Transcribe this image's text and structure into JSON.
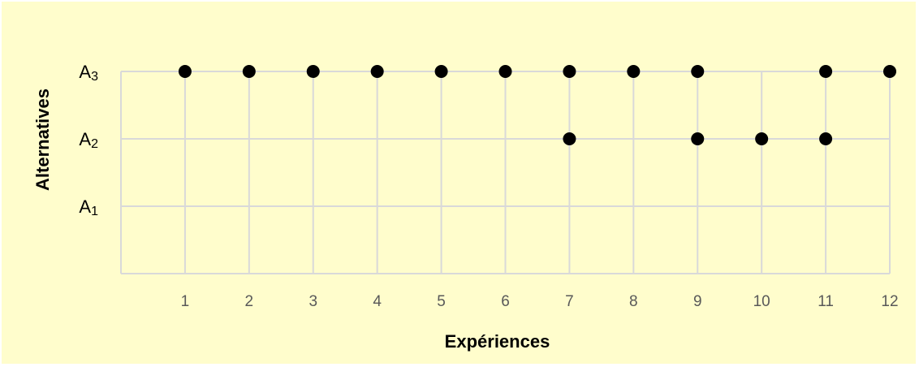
{
  "chart_data": {
    "type": "scatter",
    "xlabel": "Expériences",
    "ylabel": "Alternatives",
    "x_ticks": [
      "1",
      "2",
      "3",
      "4",
      "5",
      "6",
      "7",
      "8",
      "9",
      "10",
      "11",
      "12"
    ],
    "y_ticks": [
      {
        "value": 1,
        "base": "A",
        "sub": "1"
      },
      {
        "value": 2,
        "base": "A",
        "sub": "2"
      },
      {
        "value": 3,
        "base": "A",
        "sub": "3"
      }
    ],
    "xlim": [
      0,
      12
    ],
    "ylim": [
      0,
      3
    ],
    "grid": true,
    "background": "#fffdcc",
    "marker_color": "#000000",
    "grid_color": "#d9d9d9",
    "points": [
      {
        "x": 1,
        "y": 3
      },
      {
        "x": 2,
        "y": 3
      },
      {
        "x": 3,
        "y": 3
      },
      {
        "x": 4,
        "y": 3
      },
      {
        "x": 5,
        "y": 3
      },
      {
        "x": 6,
        "y": 3
      },
      {
        "x": 7,
        "y": 3
      },
      {
        "x": 8,
        "y": 3
      },
      {
        "x": 9,
        "y": 3
      },
      {
        "x": 11,
        "y": 3
      },
      {
        "x": 12,
        "y": 3
      },
      {
        "x": 7,
        "y": 2
      },
      {
        "x": 9,
        "y": 2
      },
      {
        "x": 10,
        "y": 2
      },
      {
        "x": 11,
        "y": 2
      }
    ]
  }
}
